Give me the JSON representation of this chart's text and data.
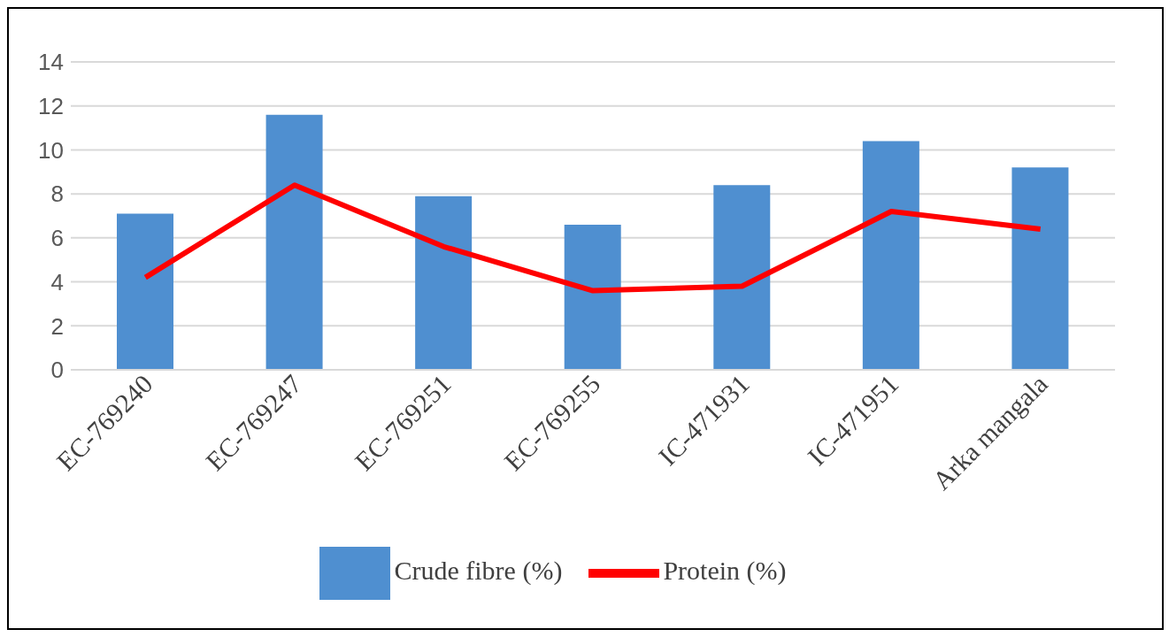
{
  "chart_data": {
    "type": "bar",
    "categories": [
      "EC-769240",
      "EC-769247",
      "EC-769251",
      "EC-769255",
      "IC-471931",
      "IC-471951",
      "Arka mangala"
    ],
    "series": [
      {
        "name": "Crude fibre (%)",
        "color": "#4f8fd0",
        "values": [
          7.1,
          11.6,
          7.9,
          6.6,
          8.4,
          10.4,
          9.2
        ]
      },
      {
        "name": "Protein (%)",
        "type": "line",
        "color": "#ff0000",
        "values": [
          4.2,
          8.4,
          5.6,
          3.6,
          3.8,
          7.2,
          6.4
        ]
      }
    ],
    "ylim": [
      0,
      14
    ],
    "yticks": [
      0,
      2,
      4,
      6,
      8,
      10,
      12,
      14
    ],
    "grid": "y",
    "legend": "bottom",
    "marker": "none"
  }
}
